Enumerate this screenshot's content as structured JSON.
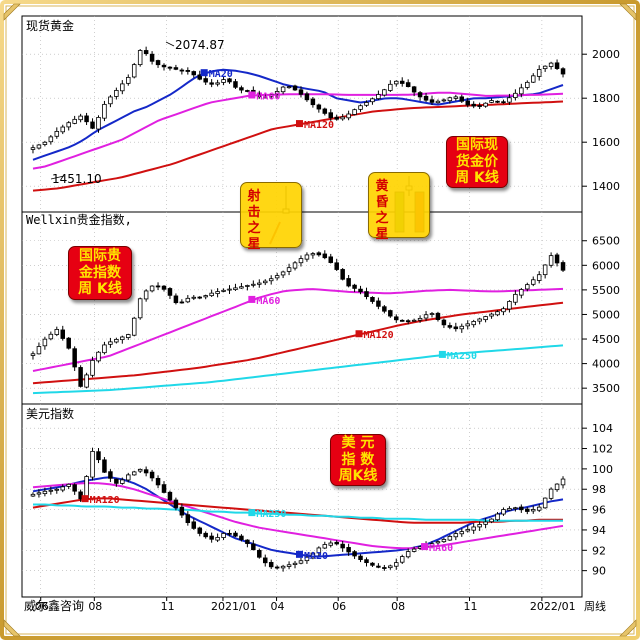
{
  "panel_titles": {
    "spot_gold": "现货黄金",
    "wellxin_index": "Wellxin贵金指数,",
    "usd_index": "美元指数"
  },
  "footer": {
    "brand": "威尔鑫咨询",
    "period": "周线"
  },
  "badges": {
    "spot_gold": "国际现\n货金价\n周 K线",
    "wellxin_index": "国际贵\n金指数\n周 K线",
    "usd_index": "美  元\n指  数\n周K线"
  },
  "pattern_labels": {
    "shooting_star": "射\n击\n之\n星",
    "evening_star": "黄\n昏\n之\n星"
  },
  "colors": {
    "up_candle": "#ffffff",
    "down_candle": "#000000",
    "ma20": "#1428c8",
    "ma60": "#e020e0",
    "ma120": "#d01010",
    "ma250": "#20d8e8",
    "badge_red": "#e60012",
    "badge_yellow": "#ffd400"
  },
  "chart_data": [
    {
      "type": "candlestick",
      "title": "现货黄金",
      "x_tick_labels": [
        "06",
        "08",
        "11",
        "2021/01",
        "04",
        "06",
        "08",
        "11",
        "2022/01"
      ],
      "y_ticks": [
        1400,
        1600,
        1800,
        2000
      ],
      "ylim": [
        1310,
        2110
      ],
      "grid": "dotted",
      "annotations": [
        {
          "label": "2074.87",
          "value": 2074.87
        },
        {
          "label": "1451.10",
          "value": 1451.1
        }
      ],
      "ma_labels": [
        {
          "series": "ma20",
          "label": "MA20"
        },
        {
          "series": "ma60",
          "label": "MA60"
        },
        {
          "series": "ma120",
          "label": "MA120"
        }
      ],
      "series": [
        {
          "key": "ma20",
          "values": [
            1520,
            1540,
            1560,
            1580,
            1610,
            1650,
            1680,
            1710,
            1740,
            1760,
            1790,
            1820,
            1860,
            1900,
            1920,
            1930,
            1925,
            1915,
            1900,
            1880,
            1860,
            1850,
            1840,
            1830,
            1800,
            1790,
            1780,
            1790,
            1800,
            1800,
            1790,
            1780,
            1770,
            1780,
            1790,
            1800,
            1800,
            1805,
            1810,
            1815,
            1820,
            1840,
            1860
          ]
        },
        {
          "key": "ma60",
          "values": [
            1480,
            1490,
            1510,
            1530,
            1550,
            1570,
            1590,
            1610,
            1640,
            1670,
            1700,
            1720,
            1740,
            1760,
            1780,
            1790,
            1800,
            1810,
            1815,
            1815,
            1818,
            1818,
            1818,
            1818,
            1817,
            1815,
            1815,
            1815,
            1815,
            1815,
            1816,
            1820,
            1825,
            1825,
            1820,
            1815,
            1810,
            1812,
            1812,
            1815,
            1815,
            1818,
            1820
          ]
        },
        {
          "key": "ma120",
          "values": [
            1380,
            1385,
            1390,
            1400,
            1410,
            1420,
            1430,
            1440,
            1455,
            1470,
            1485,
            1500,
            1520,
            1540,
            1560,
            1580,
            1600,
            1620,
            1640,
            1660,
            1670,
            1680,
            1690,
            1700,
            1710,
            1720,
            1730,
            1740,
            1745,
            1750,
            1755,
            1758,
            1760,
            1762,
            1765,
            1768,
            1770,
            1772,
            1775,
            1778,
            1780,
            1782,
            1785
          ]
        },
        {
          "key": "close",
          "values": [
            1575,
            1600,
            1650,
            1690,
            1720,
            1660,
            1780,
            1840,
            1900,
            2030,
            1960,
            1940,
            1930,
            1920,
            1880,
            1860,
            1890,
            1840,
            1830,
            1800,
            1820,
            1860,
            1830,
            1780,
            1740,
            1700,
            1720,
            1760,
            1790,
            1830,
            1880,
            1860,
            1810,
            1780,
            1790,
            1810,
            1770,
            1760,
            1790,
            1780,
            1820,
            1870,
            1930,
            1960,
            1910
          ]
        }
      ]
    },
    {
      "type": "candlestick",
      "title": "Wellxin贵金指数,",
      "y_ticks": [
        3500,
        4000,
        4500,
        5000,
        5500,
        6000,
        6500
      ],
      "ylim": [
        3300,
        6800
      ],
      "grid": "dotted",
      "ma_labels": [
        {
          "series": "ma60",
          "label": "MA60"
        },
        {
          "series": "ma120",
          "label": "MA120"
        },
        {
          "series": "ma250",
          "label": "MA250"
        }
      ],
      "series": [
        {
          "key": "ma60",
          "values": [
            3850,
            3900,
            3950,
            4000,
            4050,
            4100,
            4150,
            4250,
            4350,
            4450,
            4550,
            4650,
            4750,
            4850,
            4950,
            5050,
            5150,
            5250,
            5350,
            5420,
            5480,
            5500,
            5520,
            5500,
            5480,
            5460,
            5450,
            5440,
            5430,
            5440,
            5460,
            5480,
            5490,
            5500,
            5490,
            5480,
            5470,
            5470,
            5480,
            5490,
            5500,
            5510,
            5520
          ]
        },
        {
          "key": "ma120",
          "values": [
            3600,
            3620,
            3640,
            3660,
            3680,
            3700,
            3720,
            3740,
            3760,
            3790,
            3820,
            3850,
            3880,
            3910,
            3950,
            3990,
            4030,
            4070,
            4120,
            4180,
            4240,
            4300,
            4360,
            4420,
            4480,
            4540,
            4600,
            4660,
            4720,
            4780,
            4830,
            4880,
            4920,
            4960,
            5000,
            5030,
            5060,
            5090,
            5120,
            5150,
            5180,
            5210,
            5240
          ]
        },
        {
          "key": "ma250",
          "values": [
            3400,
            3410,
            3420,
            3430,
            3440,
            3450,
            3460,
            3480,
            3500,
            3520,
            3540,
            3560,
            3580,
            3600,
            3620,
            3650,
            3680,
            3710,
            3740,
            3770,
            3800,
            3830,
            3860,
            3890,
            3920,
            3950,
            3980,
            4010,
            4040,
            4070,
            4100,
            4130,
            4160,
            4190,
            4210,
            4230,
            4250,
            4270,
            4290,
            4310,
            4330,
            4350,
            4370
          ]
        },
        {
          "key": "close",
          "values": [
            4200,
            4500,
            4700,
            4300,
            3500,
            4100,
            4400,
            4500,
            4600,
            5400,
            5600,
            5500,
            5200,
            5350,
            5350,
            5450,
            5500,
            5550,
            5600,
            5650,
            5750,
            5900,
            6100,
            6250,
            6200,
            6000,
            5600,
            5500,
            5300,
            5100,
            4900,
            4850,
            4900,
            5050,
            4800,
            4700,
            4800,
            4900,
            5000,
            5100,
            5400,
            5600,
            5800,
            6200,
            5900
          ]
        }
      ]
    },
    {
      "type": "candlestick",
      "title": "美元指数",
      "y_ticks": [
        90,
        92,
        94,
        96,
        98,
        100,
        102,
        104
      ],
      "ylim": [
        88,
        105
      ],
      "grid": "dotted",
      "ma_labels": [
        {
          "series": "ma20",
          "label": "MA20"
        },
        {
          "series": "ma60",
          "label": "MA60"
        },
        {
          "series": "ma120",
          "label": "MA120"
        },
        {
          "series": "ma250",
          "label": "MA250"
        }
      ],
      "series": [
        {
          "key": "ma20",
          "values": [
            97.8,
            98.0,
            98.2,
            98.5,
            98.8,
            99.0,
            99.2,
            99.0,
            98.6,
            98.0,
            97.2,
            96.4,
            95.6,
            95.0,
            94.4,
            93.8,
            93.2,
            92.8,
            92.4,
            92.0,
            91.8,
            91.6,
            91.4,
            91.4,
            91.5,
            91.6,
            91.7,
            91.8,
            91.9,
            92.0,
            92.2,
            92.5,
            93.0,
            93.6,
            94.2,
            94.8,
            95.2,
            95.6,
            96.0,
            96.2,
            96.5,
            96.8,
            97.0
          ]
        },
        {
          "key": "ma60",
          "values": [
            98.2,
            98.3,
            98.4,
            98.5,
            98.6,
            98.6,
            98.5,
            98.3,
            98.0,
            97.6,
            97.2,
            96.8,
            96.4,
            96.0,
            95.6,
            95.2,
            94.8,
            94.5,
            94.2,
            94.0,
            93.8,
            93.6,
            93.4,
            93.2,
            93.0,
            92.8,
            92.6,
            92.4,
            92.3,
            92.2,
            92.2,
            92.3,
            92.4,
            92.6,
            92.8,
            93.0,
            93.2,
            93.4,
            93.6,
            93.8,
            94.0,
            94.2,
            94.4
          ]
        },
        {
          "key": "ma120",
          "values": [
            96.2,
            96.4,
            96.6,
            96.8,
            97.0,
            97.1,
            97.1,
            97.0,
            96.9,
            96.8,
            96.7,
            96.6,
            96.5,
            96.4,
            96.3,
            96.2,
            96.1,
            96.0,
            95.9,
            95.8,
            95.7,
            95.6,
            95.5,
            95.4,
            95.3,
            95.2,
            95.1,
            95.0,
            94.9,
            94.8,
            94.7,
            94.7,
            94.7,
            94.7,
            94.7,
            94.8,
            94.8,
            94.8,
            94.9,
            94.9,
            95.0,
            95.0,
            95.0
          ]
        },
        {
          "key": "ma250",
          "values": [
            96.5,
            96.5,
            96.4,
            96.4,
            96.3,
            96.3,
            96.3,
            96.2,
            96.2,
            96.1,
            96.1,
            96.0,
            96.0,
            95.9,
            95.8,
            95.8,
            95.7,
            95.7,
            95.6,
            95.6,
            95.5,
            95.5,
            95.4,
            95.4,
            95.3,
            95.3,
            95.2,
            95.2,
            95.1,
            95.1,
            95.1,
            95.0,
            95.0,
            95.0,
            95.0,
            95.0,
            94.9,
            94.9,
            94.9,
            94.9,
            94.9,
            94.9,
            94.9
          ]
        },
        {
          "key": "close",
          "values": [
            97.5,
            97.8,
            98.0,
            98.5,
            97.0,
            102.0,
            99.5,
            98.5,
            99.5,
            100.0,
            99.0,
            97.5,
            96.0,
            94.5,
            93.5,
            93.0,
            93.8,
            93.3,
            92.5,
            91.0,
            90.2,
            90.5,
            90.8,
            91.5,
            92.5,
            92.8,
            92.0,
            91.2,
            90.6,
            90.2,
            90.6,
            91.8,
            92.3,
            92.6,
            93.0,
            93.6,
            94.0,
            94.5,
            95.0,
            96.0,
            96.2,
            95.8,
            96.2,
            98.0,
            99.0
          ]
        }
      ]
    }
  ]
}
